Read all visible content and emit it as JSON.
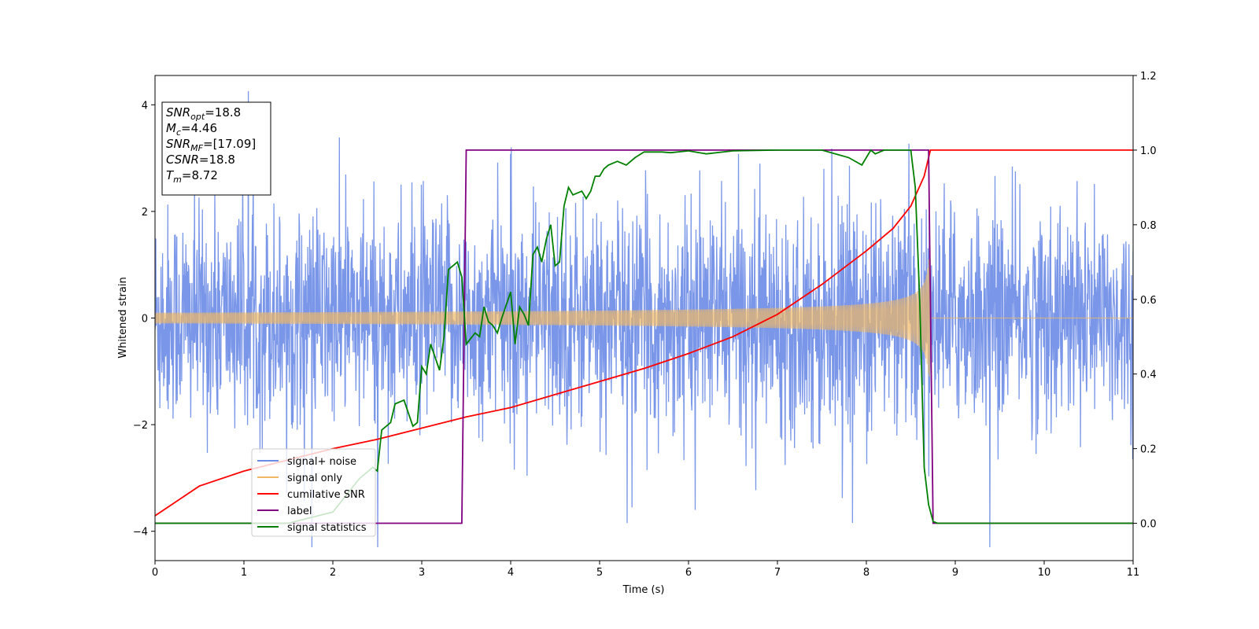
{
  "chart_data": {
    "type": "line",
    "xlabel": "Time (s)",
    "ylabel": "Whitened strain",
    "xlim": [
      0,
      11
    ],
    "ylim_left": [
      -4.55,
      4.55
    ],
    "ylim_right": [
      -0.1,
      1.2
    ],
    "x_ticks": [
      "0",
      "1",
      "2",
      "3",
      "4",
      "5",
      "6",
      "7",
      "8",
      "9",
      "10",
      "11"
    ],
    "y_ticks_left": [
      "4",
      "2",
      "0",
      "−2",
      "−4"
    ],
    "y_ticks_right": [
      "1.2",
      "1.0",
      "0.8",
      "0.6",
      "0.4",
      "0.2",
      "0.0"
    ],
    "grid": false,
    "legend_position": "lower-left",
    "colors": {
      "signal_noise": "#6b8be6",
      "signal_only": "#f0b865",
      "cumulative_snr": "#ff0000",
      "label": "#800080",
      "signal_statistics": "#008000"
    },
    "series": [
      {
        "name": "signal+ noise",
        "axis": "left",
        "description_hidden": true,
        "noise_envelope": {
          "x": [
            0,
            11
          ],
          "typical_abs": [
            1.5,
            1.5
          ],
          "peak_abs": [
            3.5,
            4.2
          ]
        }
      },
      {
        "name": "signal only",
        "axis": "left",
        "chirp": {
          "t_start": 0,
          "t_merge": 8.72,
          "amp_start": 0.1,
          "amp_peak": 1.1
        }
      },
      {
        "name": "cumilative SNR",
        "axis": "right",
        "x": [
          0,
          0.5,
          1,
          1.5,
          2,
          2.5,
          3,
          3.5,
          4,
          4.5,
          5,
          5.5,
          6,
          6.5,
          7,
          7.5,
          8,
          8.3,
          8.5,
          8.65,
          8.72,
          11
        ],
        "values": [
          0.02,
          0.1,
          0.14,
          0.17,
          0.2,
          0.225,
          0.255,
          0.285,
          0.31,
          0.345,
          0.38,
          0.415,
          0.455,
          0.5,
          0.56,
          0.64,
          0.73,
          0.79,
          0.85,
          0.93,
          1.0,
          1.0
        ]
      },
      {
        "name": "label",
        "axis": "right",
        "x": [
          0,
          3.45,
          3.5,
          8.7,
          8.75,
          11
        ],
        "values": [
          0,
          0,
          1,
          1,
          0,
          0
        ]
      },
      {
        "name": "signal statistics",
        "axis": "right",
        "x": [
          0,
          0.5,
          1.0,
          1.5,
          2.0,
          2.3,
          2.45,
          2.5,
          2.55,
          2.65,
          2.7,
          2.8,
          2.9,
          2.95,
          3.0,
          3.05,
          3.1,
          3.2,
          3.25,
          3.3,
          3.4,
          3.45,
          3.5,
          3.6,
          3.65,
          3.7,
          3.75,
          3.8,
          3.85,
          3.9,
          4.0,
          4.05,
          4.1,
          4.15,
          4.2,
          4.25,
          4.3,
          4.35,
          4.4,
          4.45,
          4.5,
          4.55,
          4.6,
          4.65,
          4.7,
          4.8,
          4.85,
          4.9,
          4.95,
          5.0,
          5.05,
          5.1,
          5.2,
          5.3,
          5.4,
          5.5,
          5.6,
          5.7,
          5.8,
          6.0,
          6.2,
          6.5,
          7.0,
          7.5,
          7.8,
          7.95,
          8.0,
          8.05,
          8.1,
          8.2,
          8.3,
          8.5,
          8.55,
          8.6,
          8.65,
          8.7,
          8.75,
          8.8,
          9.0,
          11.0
        ],
        "values": [
          0.0,
          0.0,
          0.0,
          0.0,
          0.03,
          0.12,
          0.15,
          0.14,
          0.25,
          0.27,
          0.32,
          0.33,
          0.26,
          0.27,
          0.42,
          0.4,
          0.48,
          0.41,
          0.5,
          0.68,
          0.7,
          0.66,
          0.48,
          0.51,
          0.5,
          0.58,
          0.54,
          0.53,
          0.51,
          0.55,
          0.62,
          0.48,
          0.58,
          0.56,
          0.53,
          0.72,
          0.74,
          0.7,
          0.76,
          0.8,
          0.69,
          0.7,
          0.85,
          0.9,
          0.88,
          0.89,
          0.87,
          0.89,
          0.93,
          0.93,
          0.95,
          0.96,
          0.97,
          0.96,
          0.98,
          0.995,
          0.995,
          0.995,
          0.993,
          0.998,
          0.99,
          0.998,
          1.0,
          1.0,
          0.98,
          0.96,
          0.98,
          1.0,
          0.99,
          1.0,
          1.0,
          1.0,
          0.9,
          0.6,
          0.15,
          0.05,
          0.005,
          0.0,
          0.0,
          0.0
        ]
      }
    ],
    "annotation_box": {
      "lines": [
        {
          "sym": "SNR",
          "sub": "opt",
          "rest": "=18.8"
        },
        {
          "sym": "M",
          "sub": "c",
          "rest": "=4.46"
        },
        {
          "sym": "SNR",
          "sub": "MF",
          "rest": "=[17.09]"
        },
        {
          "sym": "CSNR",
          "sub": "",
          "rest": "=18.8"
        },
        {
          "sym": "T",
          "sub": "m",
          "rest": "=8.72"
        }
      ]
    },
    "legend": [
      "signal+ noise",
      "signal only",
      "cumilative SNR",
      "label",
      "signal statistics"
    ]
  }
}
